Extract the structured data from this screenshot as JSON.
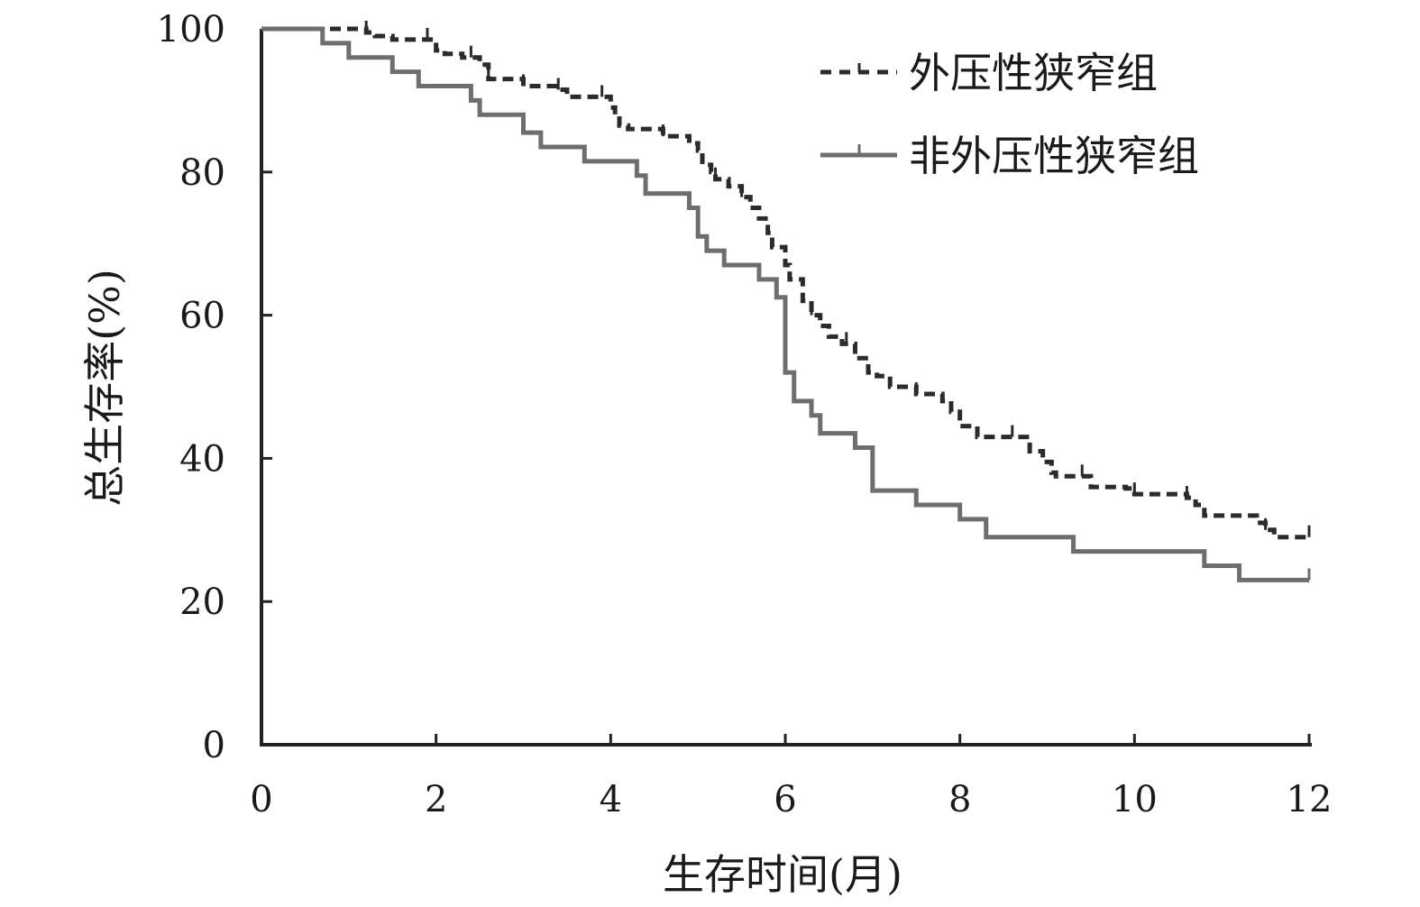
{
  "chart_data": {
    "type": "line",
    "title": "",
    "xlabel": "生存时间(月)",
    "ylabel": "总生存率(%)",
    "xlim": [
      0,
      12
    ],
    "ylim": [
      0,
      100
    ],
    "xticks": [
      0,
      2,
      4,
      6,
      8,
      10,
      12
    ],
    "yticks": [
      0,
      20,
      40,
      60,
      80,
      100
    ],
    "x_tick_labels": [
      "0",
      "2",
      "4",
      "6",
      "8",
      "10",
      "12"
    ],
    "y_tick_labels": [
      "0",
      "20",
      "40",
      "60",
      "80",
      "100"
    ],
    "grid": false,
    "legend_position": "top-right",
    "series": [
      {
        "name": "外压性狭窄组",
        "style": "dashed",
        "color": "#2b2b2b",
        "steps": [
          [
            0,
            100
          ],
          [
            1.0,
            100
          ],
          [
            1.2,
            99.5
          ],
          [
            1.3,
            99
          ],
          [
            1.5,
            98.5
          ],
          [
            1.95,
            98.5
          ],
          [
            2.0,
            97
          ],
          [
            2.1,
            96.5
          ],
          [
            2.3,
            96
          ],
          [
            2.5,
            95
          ],
          [
            2.6,
            93
          ],
          [
            2.9,
            93
          ],
          [
            3.0,
            92
          ],
          [
            3.4,
            91.5
          ],
          [
            3.5,
            90.5
          ],
          [
            3.9,
            90.5
          ],
          [
            4.0,
            89
          ],
          [
            4.05,
            88
          ],
          [
            4.1,
            86.5
          ],
          [
            4.2,
            86
          ],
          [
            4.6,
            85
          ],
          [
            4.9,
            84
          ],
          [
            5.0,
            83
          ],
          [
            5.05,
            81
          ],
          [
            5.15,
            80
          ],
          [
            5.2,
            79
          ],
          [
            5.35,
            78
          ],
          [
            5.5,
            76.5
          ],
          [
            5.6,
            75
          ],
          [
            5.7,
            73.5
          ],
          [
            5.8,
            71.5
          ],
          [
            5.85,
            69.5
          ],
          [
            6.0,
            67
          ],
          [
            6.05,
            65
          ],
          [
            6.2,
            62
          ],
          [
            6.3,
            60
          ],
          [
            6.4,
            58.5
          ],
          [
            6.5,
            57
          ],
          [
            6.65,
            56
          ],
          [
            6.8,
            54
          ],
          [
            6.95,
            52
          ],
          [
            7.05,
            51.5
          ],
          [
            7.2,
            50
          ],
          [
            7.5,
            49
          ],
          [
            7.8,
            48
          ],
          [
            7.9,
            46.5
          ],
          [
            8.0,
            44.5
          ],
          [
            8.2,
            43
          ],
          [
            8.7,
            43
          ],
          [
            8.8,
            41
          ],
          [
            8.95,
            39.5
          ],
          [
            9.05,
            38
          ],
          [
            9.1,
            37.5
          ],
          [
            9.5,
            36
          ],
          [
            9.9,
            35.8
          ],
          [
            10.0,
            35
          ],
          [
            10.6,
            34.5
          ],
          [
            10.7,
            33.5
          ],
          [
            10.8,
            32
          ],
          [
            11.4,
            31
          ],
          [
            11.5,
            30
          ],
          [
            11.6,
            29
          ],
          [
            12.0,
            29
          ]
        ],
        "censor_times": [
          1.2,
          1.9,
          2.4,
          2.6,
          3.0,
          3.4,
          3.9,
          4.6,
          5.2,
          5.5,
          6.3,
          6.7,
          7.5,
          8.6,
          9.4,
          10.0,
          10.6,
          11.5,
          12.0
        ]
      },
      {
        "name": "非外压性狭窄组",
        "style": "solid",
        "color": "#6e6e6e",
        "steps": [
          [
            0,
            100
          ],
          [
            0.7,
            98
          ],
          [
            1.0,
            96
          ],
          [
            1.5,
            94
          ],
          [
            1.8,
            92
          ],
          [
            2.4,
            90
          ],
          [
            2.5,
            88
          ],
          [
            3.0,
            85.5
          ],
          [
            3.2,
            83.5
          ],
          [
            3.7,
            81.5
          ],
          [
            4.3,
            79.5
          ],
          [
            4.4,
            77
          ],
          [
            4.9,
            75
          ],
          [
            5.0,
            71
          ],
          [
            5.1,
            69
          ],
          [
            5.3,
            67
          ],
          [
            5.7,
            65
          ],
          [
            5.9,
            62.5
          ],
          [
            6.0,
            52
          ],
          [
            6.1,
            48
          ],
          [
            6.3,
            46
          ],
          [
            6.4,
            43.5
          ],
          [
            6.8,
            41.5
          ],
          [
            7.0,
            35.5
          ],
          [
            7.5,
            33.5
          ],
          [
            8.0,
            31.5
          ],
          [
            8.3,
            29
          ],
          [
            9.3,
            27
          ],
          [
            10.8,
            25
          ],
          [
            11.2,
            23
          ],
          [
            12.0,
            23
          ]
        ],
        "censor_times": [
          12.0
        ]
      }
    ]
  }
}
